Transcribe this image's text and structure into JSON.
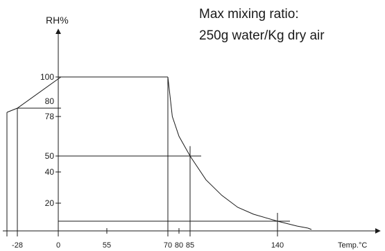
{
  "chart_data": {
    "type": "line",
    "y_axis_label": "RH%",
    "x_axis_label": "Temp.°C",
    "annotation": {
      "line1": "Max mixing ratio:",
      "line2": "250g water/Kg dry air"
    },
    "y_ticks": [
      {
        "value": 100,
        "label": "100"
      },
      {
        "value": 80,
        "label": "80"
      },
      {
        "value": 78,
        "label": "78"
      },
      {
        "value": 50,
        "label": "50"
      },
      {
        "value": 40,
        "label": "40"
      },
      {
        "value": 20,
        "label": "20"
      }
    ],
    "x_ticks": [
      {
        "value": -28,
        "label": "-28"
      },
      {
        "value": 0,
        "label": "0"
      },
      {
        "value": 55,
        "label": "55"
      },
      {
        "value": 70,
        "label": "70"
      },
      {
        "value": 80,
        "label": "80"
      },
      {
        "value": 85,
        "label": "85"
      },
      {
        "value": 140,
        "label": "140"
      }
    ],
    "envelope": {
      "straight_segment": [
        {
          "x": -31,
          "y": 79
        },
        {
          "x": -28,
          "y": 80
        },
        {
          "x": 3,
          "y": 100
        },
        {
          "x": 70,
          "y": 100
        }
      ],
      "saturation_curve": [
        {
          "x": 70,
          "y": 100
        },
        {
          "x": 74,
          "y": 78
        },
        {
          "x": 80,
          "y": 64
        },
        {
          "x": 85,
          "y": 50
        },
        {
          "x": 95,
          "y": 35
        },
        {
          "x": 105,
          "y": 25
        },
        {
          "x": 115,
          "y": 17
        },
        {
          "x": 125,
          "y": 12
        },
        {
          "x": 140,
          "y": 7
        },
        {
          "x": 155,
          "y": 3.5
        },
        {
          "x": 163,
          "y": 2
        }
      ],
      "end_hook": [
        {
          "x": 163,
          "y": 2
        },
        {
          "x": 166,
          "y": 1
        }
      ],
      "left_edge_x": -31,
      "floor_y": 0
    },
    "guide_lines": [
      {
        "orientation": "horizontal",
        "y": 80,
        "x_from": -28,
        "x_to": 3
      },
      {
        "orientation": "horizontal",
        "y": 50,
        "x_from": 0,
        "x_to": 92
      },
      {
        "orientation": "horizontal",
        "y": 7,
        "x_from": 0,
        "x_to": 150
      },
      {
        "orientation": "vertical",
        "x": -28,
        "y_from": 0,
        "y_to": 80
      },
      {
        "orientation": "vertical",
        "x": 70,
        "y_from": 0,
        "y_to": 100
      },
      {
        "orientation": "vertical",
        "x": 85,
        "y_from": 0,
        "y_to": 57
      },
      {
        "orientation": "vertical",
        "x": 140,
        "y_from": 0,
        "y_to": 13
      }
    ]
  }
}
